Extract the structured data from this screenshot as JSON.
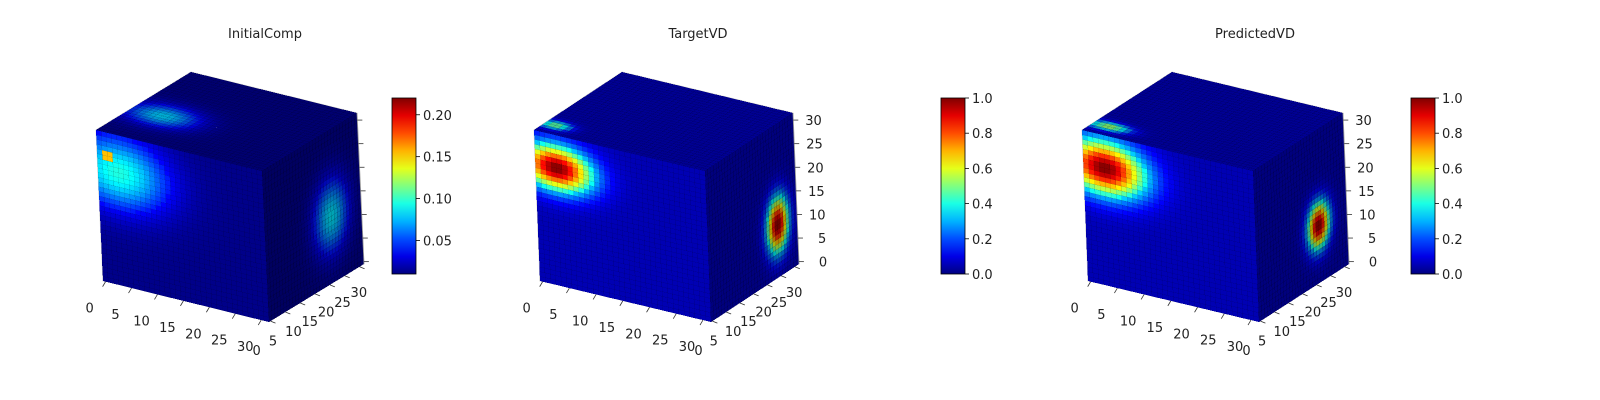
{
  "chart_data": [
    {
      "type": "heatmap",
      "title": "InitialComp",
      "xlim": [
        0,
        32
      ],
      "ylim": [
        0,
        32
      ],
      "zlim": [
        0,
        32
      ],
      "x_ticks": [
        "0",
        "5",
        "10",
        "15",
        "20",
        "25",
        "30"
      ],
      "y_ticks": [
        "0",
        "5",
        "10",
        "15",
        "20",
        "25",
        "30"
      ],
      "z_ticks": [],
      "colormap": "jet",
      "background_value": 0.012,
      "colorbar": {
        "vmin": 0.01,
        "vmax": 0.22,
        "ticks": [
          "0.05",
          "0.10",
          "0.15",
          "0.20"
        ],
        "tick_values": [
          0.05,
          0.1,
          0.15,
          0.2
        ]
      },
      "blobs": [
        {
          "face": "front",
          "x": 4,
          "z": 24,
          "rx": 10,
          "rz": 8,
          "value": 0.095
        },
        {
          "face": "front",
          "x": 2,
          "z": 27,
          "rx": 1.2,
          "rz": 1.2,
          "value": 0.22
        },
        {
          "face": "top",
          "x": 6,
          "y": 12,
          "rx": 7,
          "ry": 5,
          "value": 0.08
        },
        {
          "face": "side",
          "y": 22,
          "z": 14,
          "ry": 6,
          "rz": 8,
          "value": 0.085
        }
      ]
    },
    {
      "type": "heatmap",
      "title": "TargetVD",
      "xlim": [
        0,
        32
      ],
      "ylim": [
        0,
        32
      ],
      "zlim": [
        0,
        32
      ],
      "x_ticks": [
        "0",
        "5",
        "10",
        "15",
        "20",
        "25",
        "30"
      ],
      "y_ticks": [
        "0",
        "5",
        "10",
        "15",
        "20",
        "25",
        "30"
      ],
      "z_ticks": [
        "0",
        "5",
        "10",
        "15",
        "20",
        "25",
        "30"
      ],
      "colormap": "jet",
      "background_value": 0.05,
      "colorbar": {
        "vmin": 0.0,
        "vmax": 1.0,
        "ticks": [
          "0.0",
          "0.2",
          "0.4",
          "0.6",
          "0.8",
          "1.0"
        ],
        "tick_values": [
          0.0,
          0.2,
          0.4,
          0.6,
          0.8,
          1.0
        ]
      },
      "blobs": [
        {
          "face": "front",
          "x": 4,
          "z": 25,
          "rx": 7,
          "rz": 5,
          "value": 1.0
        },
        {
          "face": "top",
          "x": 2,
          "y": 4,
          "rx": 3,
          "ry": 2,
          "value": 0.5
        },
        {
          "face": "side",
          "y": 25,
          "z": 11,
          "ry": 4,
          "rz": 6,
          "value": 1.0
        }
      ]
    },
    {
      "type": "heatmap",
      "title": "PredictedVD",
      "xlim": [
        0,
        32
      ],
      "ylim": [
        0,
        32
      ],
      "zlim": [
        0,
        32
      ],
      "x_ticks": [
        "0",
        "5",
        "10",
        "15",
        "20",
        "25",
        "30"
      ],
      "y_ticks": [
        "0",
        "5",
        "10",
        "15",
        "20",
        "25",
        "30"
      ],
      "z_ticks": [
        "0",
        "5",
        "10",
        "15",
        "20",
        "25",
        "30"
      ],
      "colormap": "jet",
      "background_value": 0.05,
      "colorbar": {
        "vmin": 0.0,
        "vmax": 1.0,
        "ticks": [
          "0.0",
          "0.2",
          "0.4",
          "0.6",
          "0.8",
          "1.0"
        ],
        "tick_values": [
          0.0,
          0.2,
          0.4,
          0.6,
          0.8,
          1.0
        ]
      },
      "blobs": [
        {
          "face": "front",
          "x": 4,
          "z": 25,
          "rx": 8,
          "rz": 6,
          "value": 1.0
        },
        {
          "face": "top",
          "x": 3,
          "y": 4,
          "rx": 4,
          "ry": 2,
          "value": 0.55
        },
        {
          "face": "side",
          "y": 22,
          "z": 12,
          "ry": 4,
          "rz": 5,
          "value": 1.0
        }
      ]
    }
  ]
}
